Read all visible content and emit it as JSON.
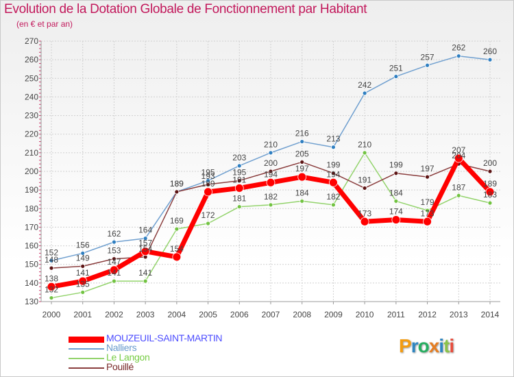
{
  "title": "Evolution de la Dotation Globale de Fonctionnement par Habitant",
  "subtitle": "(en € et par an)",
  "logo": {
    "text": "Proxiti",
    "letters": [
      "P",
      "r",
      "o",
      "x",
      "i",
      "t",
      "i"
    ],
    "colors": [
      "#f39c12",
      "#2e86c1",
      "#27ae60",
      "#e67e22",
      "#2e86c1",
      "#8bc34a",
      "#e74c3c"
    ]
  },
  "chart_data": {
    "type": "line",
    "x": [
      2000,
      2001,
      2002,
      2003,
      2004,
      2005,
      2006,
      2007,
      2008,
      2009,
      2010,
      2011,
      2012,
      2013,
      2014
    ],
    "ylim": [
      130,
      270
    ],
    "yticks": [
      130,
      140,
      150,
      160,
      170,
      180,
      190,
      200,
      210,
      220,
      230,
      240,
      250,
      260,
      270
    ],
    "grid": true,
    "legend": "bottom",
    "series": [
      {
        "name": "Nalliers",
        "color": "#6f9fcf",
        "dot": "#2f7fc1",
        "width": 1.5,
        "dotr": 3,
        "legend_color": "#6699cc",
        "values": [
          152,
          156,
          162,
          164,
          189,
          195,
          203,
          210,
          216,
          213,
          242,
          251,
          257,
          262,
          260
        ],
        "labels": [
          "152",
          "156",
          "162",
          "164",
          "189",
          "195",
          "203",
          "210",
          "216",
          "213",
          "242",
          "251",
          "257",
          "262",
          "260"
        ]
      },
      {
        "name": "Le Langon",
        "color": "#93d36c",
        "dot": "#72c342",
        "width": 1.5,
        "dotr": 3,
        "legend_color": "#77cc44",
        "values": [
          132,
          135,
          141,
          141,
          169,
          172,
          181,
          182,
          184,
          182,
          210,
          184,
          179,
          187,
          183
        ],
        "labels": [
          "132",
          "135",
          "141",
          "141",
          "169",
          "172",
          "181",
          "182",
          "184",
          "182",
          "210",
          "184",
          "179",
          "187",
          "183"
        ]
      },
      {
        "name": "Pouillé",
        "color": "#8a3d3d",
        "dot": "#5c1414",
        "width": 1.5,
        "dotr": 3,
        "legend_color": "#7a2a2a",
        "values": [
          148,
          149,
          153,
          154,
          189,
          193,
          195,
          200,
          205,
          199,
          191,
          199,
          197,
          204,
          200
        ],
        "labels": [
          "148",
          "149",
          "153",
          "154",
          "189",
          "193",
          "195",
          "200",
          "205",
          "199",
          "191",
          "199",
          "197",
          "204",
          "200"
        ]
      },
      {
        "name": "MOUZEUIL-SAINT-MARTIN",
        "color": "#ff0000",
        "dot": "#ff0000",
        "width": 7,
        "dotr": 6,
        "legend_color": "#4c4cff",
        "values": [
          138,
          141,
          147,
          157,
          154,
          189,
          191,
          194,
          197,
          194,
          173,
          174,
          173,
          207,
          189
        ],
        "labels": [
          "138",
          "141",
          "147",
          "157",
          "154",
          "189",
          "191",
          "194",
          "197",
          "194",
          "173",
          "174",
          "173",
          "207",
          "189"
        ]
      }
    ],
    "legend_order": [
      3,
      0,
      1,
      2
    ]
  }
}
